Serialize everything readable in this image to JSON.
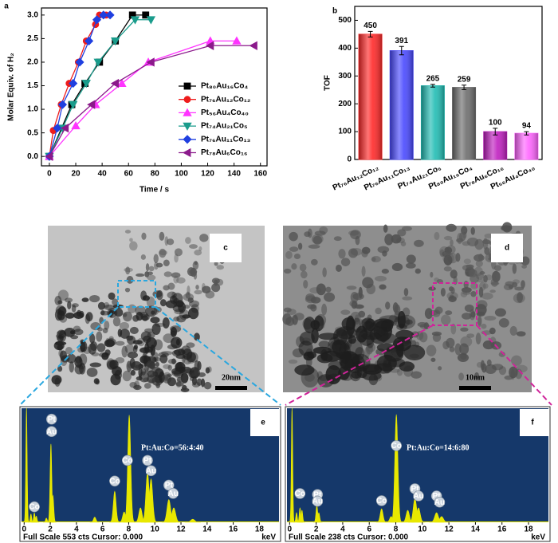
{
  "chart_data": [
    {
      "type": "line",
      "panel_label": "a",
      "xlabel": "Time / s",
      "ylabel": "Molar Equiv. of H₂",
      "xlim": [
        -6,
        165
      ],
      "ylim": [
        -0.2,
        3.15
      ],
      "xticks": [
        0,
        20,
        40,
        60,
        80,
        100,
        120,
        140,
        160
      ],
      "yticks": [
        {
          "value": 0,
          "label": "0.0"
        },
        0.5,
        {
          "value": 1,
          "label": "1.0"
        },
        1.5,
        {
          "value": 2,
          "label": "2.0"
        },
        2.5,
        {
          "value": 3,
          "label": "3.0"
        }
      ],
      "legend": "right",
      "series": [
        {
          "name": "Pt₈₀Au₁₆Co₄",
          "color": "#000000",
          "marker": "square",
          "x": [
            0,
            17,
            27,
            38,
            50,
            63,
            73
          ],
          "values": [
            0,
            1.1,
            1.55,
            2.0,
            2.45,
            3.0,
            3.0
          ]
        },
        {
          "name": "Pt₇₆Au₁₂Co₁₂",
          "color": "#ee1c1c",
          "marker": "circle",
          "x": [
            0,
            3,
            9,
            15,
            22,
            28,
            35,
            38,
            43
          ],
          "values": [
            0,
            0.55,
            1.1,
            1.55,
            2.0,
            2.45,
            2.8,
            3.0,
            3.0
          ]
        },
        {
          "name": "Pt₅₆Au₄Co₄₀",
          "color": "#ff33ff",
          "marker": "triangle-up",
          "x": [
            0,
            20,
            35,
            55,
            75,
            122,
            142
          ],
          "values": [
            0,
            0.65,
            1.1,
            1.55,
            2.0,
            2.45,
            2.45
          ]
        },
        {
          "name": "Pt₇₄Au₂₁Co₅",
          "color": "#1a9c8c",
          "marker": "triangle-down",
          "x": [
            0,
            10,
            18,
            28,
            37,
            50,
            65,
            77
          ],
          "values": [
            0,
            0.6,
            1.1,
            1.55,
            2.0,
            2.45,
            2.9,
            2.9
          ]
        },
        {
          "name": "Pt₇₆Au₁₁Co₁₃",
          "color": "#1f3fe0",
          "marker": "diamond",
          "x": [
            0,
            6,
            10,
            18,
            23,
            30,
            36,
            41,
            46
          ],
          "values": [
            0,
            0.6,
            1.1,
            1.55,
            2.0,
            2.45,
            2.9,
            3.0,
            3.0
          ]
        },
        {
          "name": "Pt₇₈Au₆Co₁₆",
          "color": "#8b1a8b",
          "marker": "triangle-left",
          "x": [
            0,
            12,
            32,
            50,
            77,
            122,
            155
          ],
          "values": [
            0,
            0.6,
            1.1,
            1.55,
            2.0,
            2.35,
            2.35
          ]
        }
      ]
    },
    {
      "type": "bar",
      "panel_label": "b",
      "ylabel": "TOF",
      "categories": [
        "Pt₇₆Au₁₂Co₁₂",
        "Pt₇₆Au₁₁Co₁₃",
        "Pt₇₄Au₂₁Co₅",
        "Pt₈₀Au₁₆Co₄",
        "Pt₇₈Au₆Co₁₆",
        "Pt₅₆Au₄Co₄₀"
      ],
      "values": [
        450,
        391,
        265,
        259,
        100,
        94
      ],
      "errors": [
        10,
        15,
        5,
        8,
        12,
        6
      ],
      "colors": [
        "#ff2a2a",
        "#4a4aff",
        "#22bdb4",
        "#6e6e6e",
        "#c020c0",
        "#ff66ff"
      ],
      "ylim": [
        0,
        550
      ],
      "yticks": [
        0,
        100,
        200,
        300,
        400,
        500
      ]
    },
    {
      "type": "spectrum",
      "panel_label": "e",
      "annotation": "Pt:Au:Co=56:4:40",
      "footer": "Full Scale 553 cts Cursor: 0.000",
      "xlabel": "keV",
      "xlim": [
        -0.2,
        19.5
      ],
      "ylim": [
        0,
        553
      ],
      "xticks": [
        0,
        2,
        4,
        6,
        8,
        10,
        12,
        14,
        16,
        18
      ],
      "color": "#e8e800",
      "x": [
        0.18,
        0.52,
        0.78,
        0.93,
        1.7,
        2.05,
        2.2,
        5.4,
        6.93,
        7.65,
        8.04,
        8.9,
        9.44,
        9.71,
        11.07,
        11.45,
        12.9
      ],
      "values": [
        553,
        40,
        45,
        30,
        20,
        380,
        130,
        25,
        150,
        50,
        520,
        70,
        240,
        210,
        110,
        70,
        15
      ],
      "peak_labels": [
        {
          "label": "Co",
          "x": 0.78,
          "y": 75
        },
        {
          "label": "Pt",
          "x": 2.1,
          "y": 500
        },
        {
          "label": "Au",
          "x": 2.1,
          "y": 440
        },
        {
          "label": "Co",
          "x": 6.93,
          "y": 200
        },
        {
          "label": "Co",
          "x": 7.9,
          "y": 300
        },
        {
          "label": "Pt",
          "x": 9.44,
          "y": 300
        },
        {
          "label": "Au",
          "x": 9.71,
          "y": 250
        },
        {
          "label": "Pt",
          "x": 11.07,
          "y": 180
        },
        {
          "label": "Au",
          "x": 11.4,
          "y": 140
        }
      ]
    },
    {
      "type": "spectrum",
      "panel_label": "f",
      "annotation": "Pt:Au:Co=14:6:80",
      "footer": "Full Scale 238 cts Cursor: 0.000",
      "xlabel": "keV",
      "xlim": [
        -0.2,
        19.5
      ],
      "ylim": [
        0,
        238
      ],
      "xticks": [
        0,
        2,
        4,
        6,
        8,
        10,
        12,
        14,
        16,
        18
      ],
      "color": "#e8e800",
      "x": [
        0.18,
        0.52,
        0.78,
        0.93,
        2.05,
        2.2,
        6.93,
        7.65,
        8.04,
        8.9,
        9.44,
        9.71,
        11.07,
        11.45
      ],
      "values": [
        238,
        20,
        30,
        25,
        35,
        20,
        28,
        12,
        225,
        25,
        50,
        30,
        20,
        12
      ],
      "peak_labels": [
        {
          "label": "Co",
          "x": 0.78,
          "y": 60
        },
        {
          "label": "Pt",
          "x": 2.1,
          "y": 58
        },
        {
          "label": "Au",
          "x": 2.1,
          "y": 44
        },
        {
          "label": "Co",
          "x": 6.93,
          "y": 45
        },
        {
          "label": "Co",
          "x": 8.04,
          "y": 160
        },
        {
          "label": "Pt",
          "x": 9.44,
          "y": 70
        },
        {
          "label": "Au",
          "x": 9.71,
          "y": 55
        },
        {
          "label": "Pt",
          "x": 11.07,
          "y": 55
        },
        {
          "label": "Au",
          "x": 11.3,
          "y": 42
        }
      ]
    }
  ],
  "images": [
    {
      "panel_label": "c",
      "scale_bar": "20nm"
    },
    {
      "panel_label": "d",
      "scale_bar": "10nm"
    }
  ]
}
